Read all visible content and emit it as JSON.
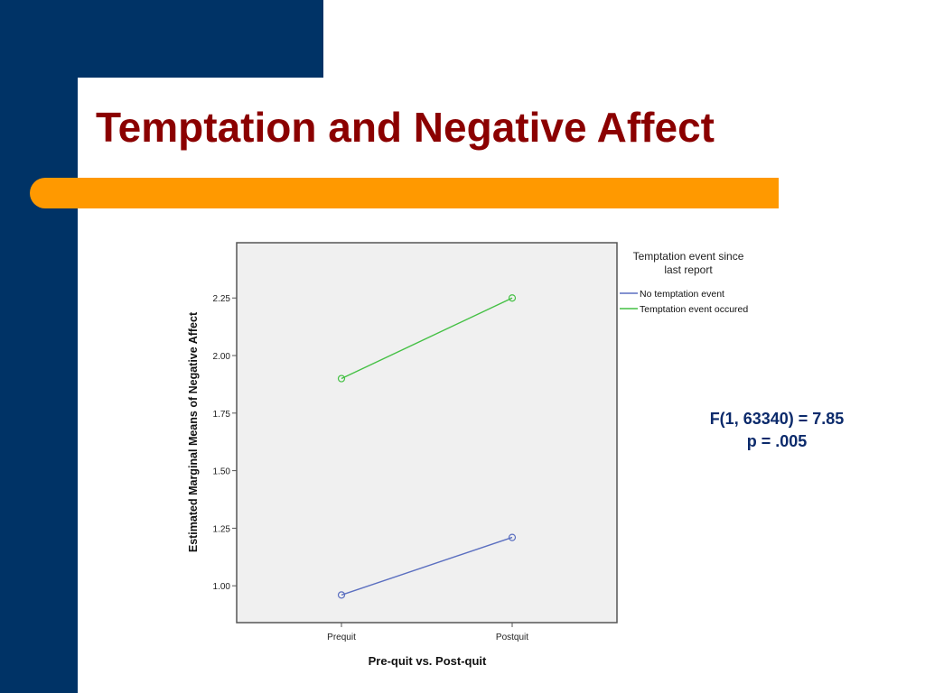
{
  "slide": {
    "title": "Temptation and Negative Affect",
    "colors": {
      "navy": "#003366",
      "orange": "#ff9900",
      "title": "#8b0000"
    }
  },
  "stats": {
    "line1": "F(1, 63340) = 7.85",
    "line2": "p = .005"
  },
  "chart_data": {
    "type": "line",
    "xlabel": "Pre-quit vs. Post-quit",
    "ylabel": "Estimated Marginal Means of Negative Affect",
    "categories": [
      "Prequit",
      "Postquit"
    ],
    "yticks": [
      "1.00",
      "1.25",
      "1.50",
      "1.75",
      "2.00",
      "2.25"
    ],
    "ylim": [
      0.84,
      2.49
    ],
    "legend_title": "Temptation event since last report",
    "legend_title_lines": [
      "Temptation event since",
      "last report"
    ],
    "legend_position": "top-right outside plot",
    "grid": false,
    "series": [
      {
        "name": "No temptation event",
        "values": [
          0.96,
          1.21
        ],
        "color": "#5b6fc0"
      },
      {
        "name": "Temptation event occured",
        "values": [
          1.9,
          2.25
        ],
        "color": "#44c044"
      }
    ]
  }
}
